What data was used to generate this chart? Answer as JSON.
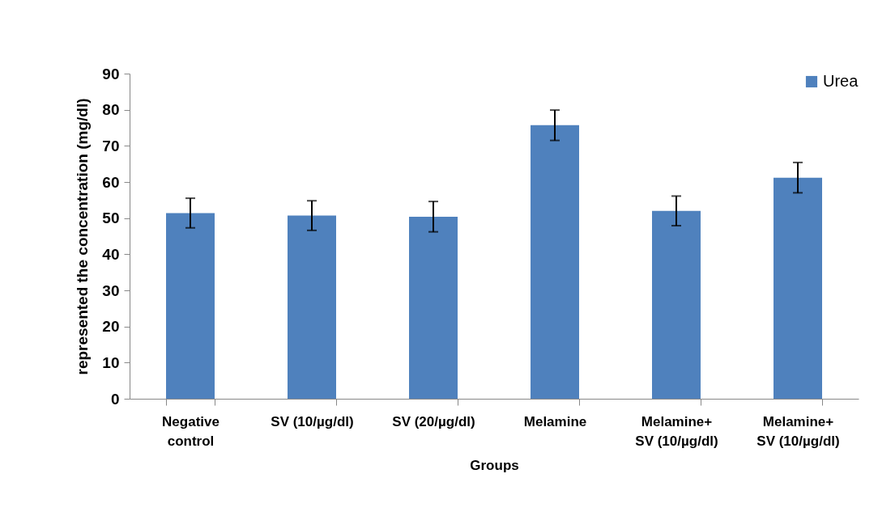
{
  "chart_data": {
    "type": "bar",
    "xlabel": "Groups",
    "ylabel": "represented the concentration (mg/dl)",
    "categories": [
      "Negative control",
      "SV (10/µg/dl)",
      "SV (20/µg/dl)",
      "Melamine",
      "Melamine+ SV (10/µg/dl)",
      "Melamine+ SV (10/µg/dl)"
    ],
    "series": [
      {
        "name": "Urea",
        "color": "#4f81bd",
        "values": [
          51.4,
          50.7,
          50.4,
          75.7,
          52.0,
          61.2
        ],
        "errors": [
          4.1,
          4.1,
          4.2,
          4.2,
          4.1,
          4.2
        ]
      }
    ],
    "ylim": [
      0,
      90
    ],
    "yticks": [
      0,
      10,
      20,
      30,
      40,
      50,
      60,
      70,
      80,
      90
    ],
    "grid": false,
    "legend": "top right"
  }
}
